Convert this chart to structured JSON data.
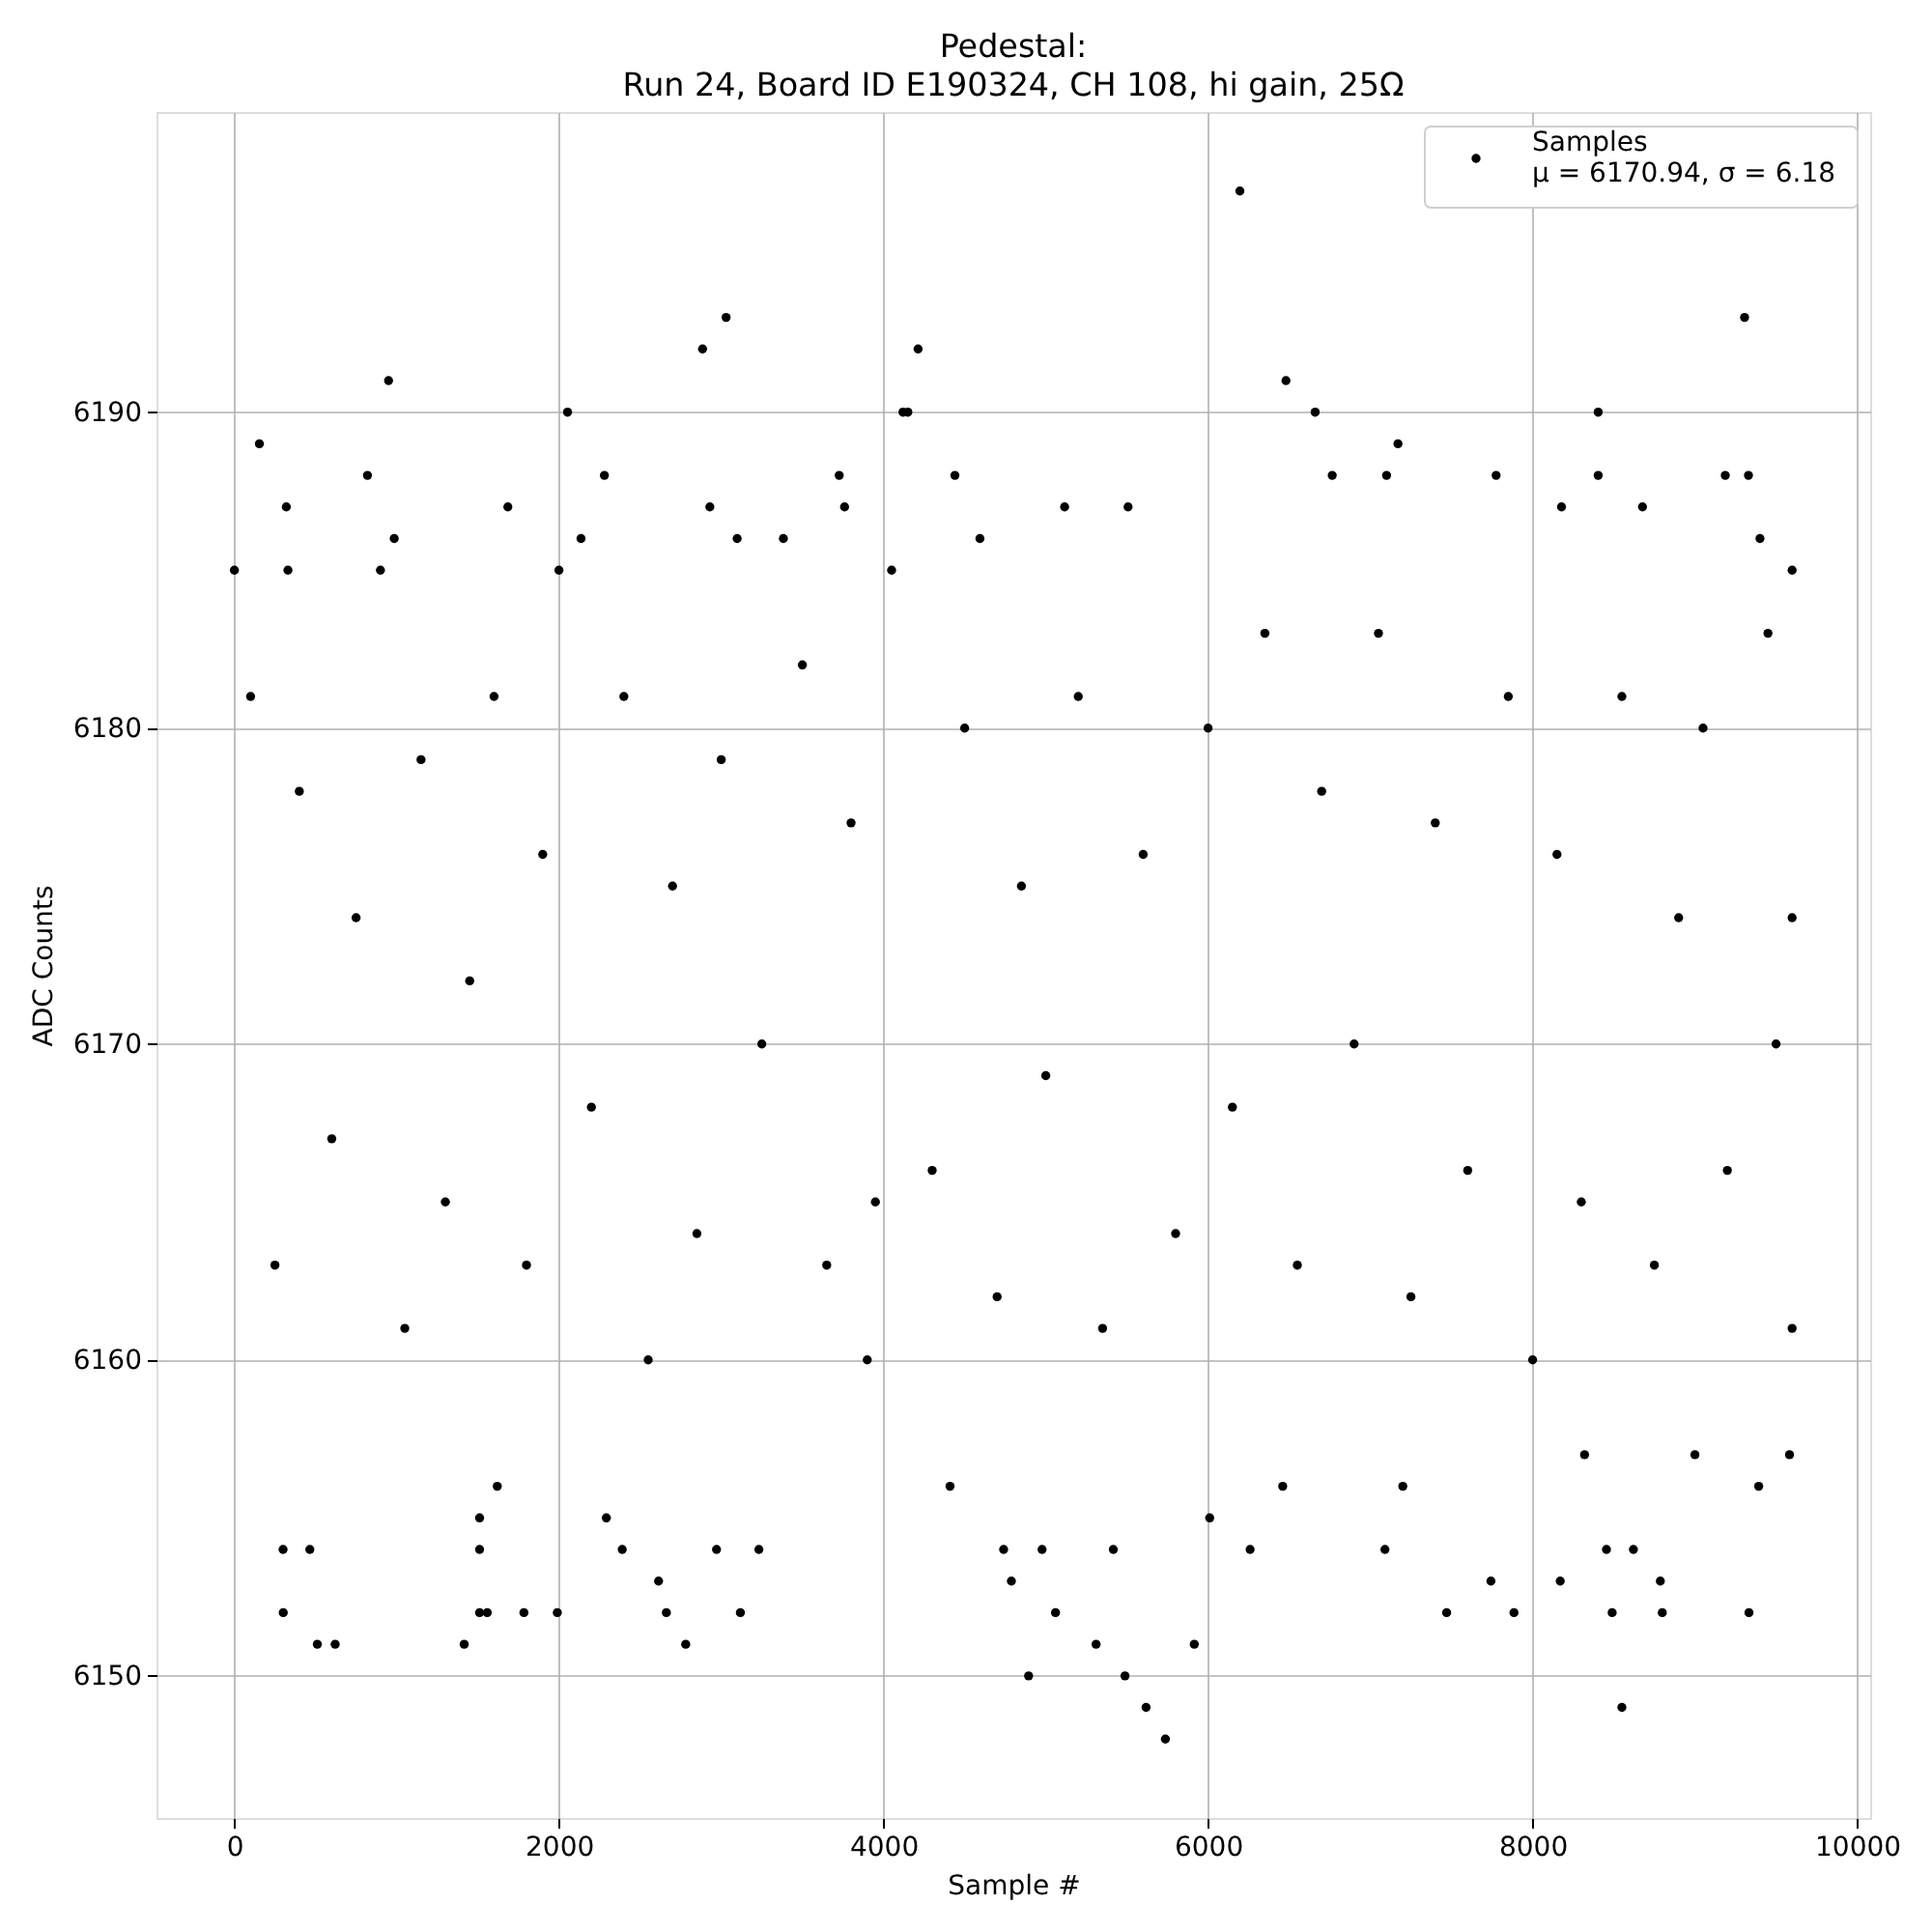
{
  "chart_data": {
    "type": "scatter",
    "title": "Pedestal:\nRun 24, Board ID E190324, CH 108, hi gain, 25Ω",
    "xlabel": "Sample #",
    "ylabel": "ADC Counts",
    "xlim": [
      -480,
      10080
    ],
    "ylim": [
      6145.5,
      6199.5
    ],
    "xticks": [
      0,
      2000,
      4000,
      6000,
      8000,
      10000
    ],
    "yticks": [
      6150,
      6160,
      6170,
      6180,
      6190
    ],
    "grid": true,
    "legend": "top right",
    "marker": "circle",
    "series": [
      {
        "name": "Samples\nμ = 6170.94, σ = 6.18",
        "color": "#000000",
        "x": [
          0,
          154,
          320,
          330,
          820,
          900,
          950,
          985,
          1685,
          2053,
          2000,
          2280,
          2136,
          2885,
          2930,
          3030,
          3098,
          3383,
          3727,
          3760,
          4120,
          4150,
          4213,
          4440,
          4594,
          5116,
          5507,
          6196,
          6480,
          6660,
          6765,
          7100,
          7170,
          7775,
          8404,
          8404,
          8178,
          8677,
          9187,
          9306,
          9330,
          9401,
          9599,
          301,
          300,
          465,
          511,
          621,
          1416,
          1511,
          1558,
          1511,
          1511,
          1784,
          1990,
          2292,
          2390,
          2614,
          2662,
          2781,
          2971,
          3118,
          3232,
          4740,
          4788,
          4894,
          4977,
          5060,
          5310,
          5416,
          5488,
          5618,
          5737,
          5915,
          6259,
          7090,
          7470,
          7743,
          7885,
          8170,
          8455,
          8490,
          8550,
          8621,
          8787,
          8799,
          9333,
          9393,
          9583,
          3900,
          4410,
          6010,
          6460,
          8320,
          9000,
          7200,
          1620,
          100,
          250,
          400,
          600,
          750,
          1050,
          1150,
          1300,
          1450,
          1600,
          1800,
          1900,
          2200,
          2400,
          2550,
          2700,
          2850,
          3000,
          3250,
          3500,
          3650,
          3800,
          3950,
          4050,
          4300,
          4500,
          4700,
          4850,
          5000,
          5200,
          5350,
          5600,
          5800,
          6000,
          6150,
          6350,
          6550,
          6700,
          6900,
          7050,
          7250,
          7400,
          7600,
          7850,
          8000,
          8150,
          8300,
          8550,
          8750,
          8900,
          9050,
          9200,
          9450,
          9599,
          9599,
          9500
        ],
        "values": [
          6185,
          6189,
          6187,
          6185,
          6188,
          6185,
          6191,
          6186,
          6187,
          6190,
          6185,
          6188,
          6186,
          6192,
          6187,
          6193,
          6186,
          6186,
          6188,
          6187,
          6190,
          6190,
          6192,
          6188,
          6186,
          6187,
          6187,
          6197,
          6191,
          6190,
          6188,
          6188,
          6189,
          6188,
          6190,
          6188,
          6187,
          6187,
          6188,
          6193,
          6188,
          6186,
          6185,
          6152,
          6154,
          6154,
          6151,
          6151,
          6151,
          6152,
          6152,
          6154,
          6155,
          6152,
          6152,
          6155,
          6154,
          6153,
          6152,
          6151,
          6154,
          6152,
          6154,
          6154,
          6153,
          6150,
          6154,
          6152,
          6151,
          6154,
          6150,
          6149,
          6148,
          6151,
          6154,
          6154,
          6152,
          6153,
          6152,
          6153,
          6154,
          6152,
          6149,
          6154,
          6153,
          6152,
          6152,
          6156,
          6157,
          6160,
          6156,
          6155,
          6156,
          6157,
          6157,
          6156,
          6156,
          6181,
          6163,
          6178,
          6167,
          6174,
          6161,
          6179,
          6165,
          6172,
          6181,
          6163,
          6176,
          6168,
          6181,
          6160,
          6175,
          6164,
          6179,
          6170,
          6182,
          6163,
          6177,
          6165,
          6185,
          6166,
          6180,
          6162,
          6175,
          6169,
          6181,
          6161,
          6176,
          6164,
          6180,
          6168,
          6183,
          6163,
          6178,
          6170,
          6183,
          6162,
          6177,
          6166,
          6181,
          6160,
          6176,
          6165,
          6181,
          6163,
          6174,
          6180,
          6166,
          6183,
          6161,
          6174,
          6170
        ]
      }
    ]
  }
}
